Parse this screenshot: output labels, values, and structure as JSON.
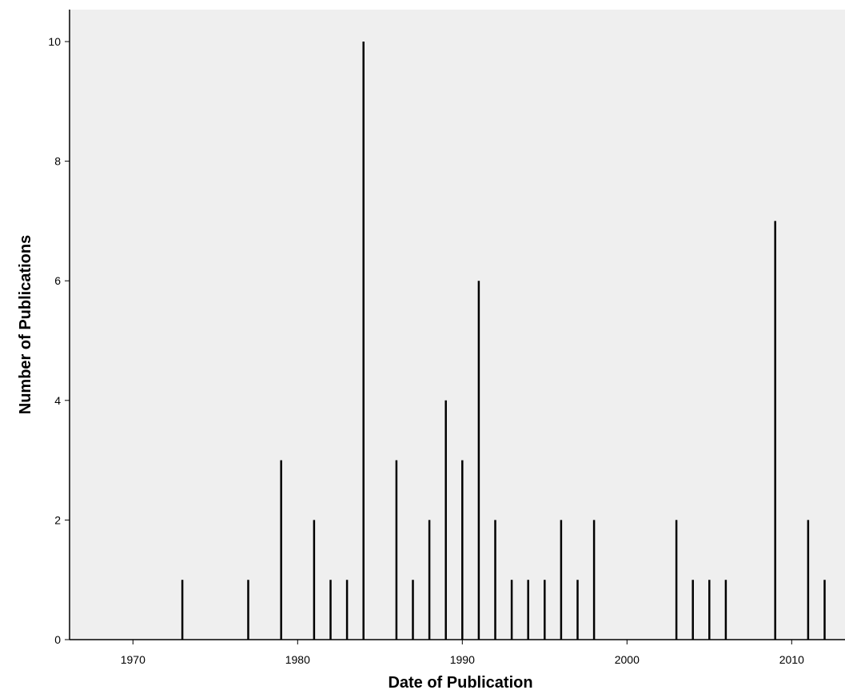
{
  "chart_data": {
    "type": "bar",
    "title": "",
    "xlabel": "Date of Publication",
    "ylabel": "Number of Publications",
    "xlim": [
      1967,
      2014.4
    ],
    "ylim": [
      0,
      10.55
    ],
    "x_ticks": [
      "1970",
      "1980",
      "1990",
      "2000",
      "2010"
    ],
    "y_ticks": [
      "0",
      "2",
      "4",
      "6",
      "8",
      "10"
    ],
    "grid": false,
    "legend": "none",
    "colors": {
      "plot_background": "#efefef",
      "bar": "#000000",
      "axis": "#000000"
    },
    "x": [
      1973,
      1977,
      1979,
      1981,
      1982,
      1983,
      1984,
      1986,
      1987,
      1988,
      1989,
      1990,
      1991,
      1992,
      1993,
      1994,
      1995,
      1996,
      1997,
      1998,
      2003,
      2004,
      2005,
      2006,
      2009,
      2011,
      2012
    ],
    "values": [
      1,
      1,
      3,
      2,
      1,
      1,
      10,
      3,
      1,
      2,
      4,
      3,
      6,
      2,
      1,
      1,
      1,
      2,
      1,
      2,
      2,
      1,
      1,
      1,
      7,
      2,
      1
    ]
  }
}
